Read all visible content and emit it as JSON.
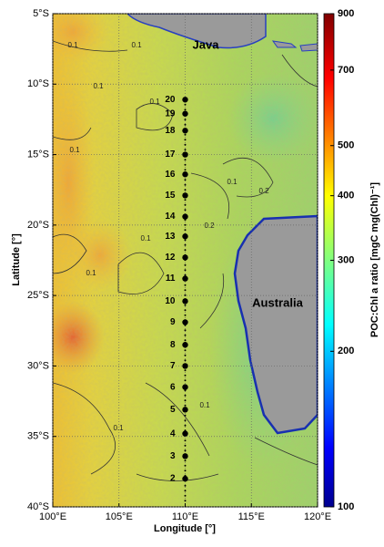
{
  "chart_data": {
    "type": "map",
    "xlabel": "Longitude [°]",
    "ylabel": "Latitude [°]",
    "xlim": [
      100,
      120
    ],
    "ylim": [
      5,
      40
    ],
    "xticks": [
      {
        "value": 100,
        "label": "100°E"
      },
      {
        "value": 105,
        "label": "105°E"
      },
      {
        "value": 110,
        "label": "110°E"
      },
      {
        "value": 115,
        "label": "115°E"
      },
      {
        "value": 120,
        "label": "120°E"
      }
    ],
    "yticks": [
      {
        "value": 5,
        "label": "5°S"
      },
      {
        "value": 10,
        "label": "10°S"
      },
      {
        "value": 15,
        "label": "15°S"
      },
      {
        "value": 20,
        "label": "20°S"
      },
      {
        "value": 25,
        "label": "25°S"
      },
      {
        "value": 30,
        "label": "30°S"
      },
      {
        "value": 35,
        "label": "35°S"
      },
      {
        "value": 40,
        "label": "40°S"
      }
    ],
    "grid": true,
    "colorbar": {
      "label": "POC:Chl a ratio [mgC mg(Chl)⁻¹]",
      "lim": [
        100,
        900
      ],
      "log": true,
      "ticks": [
        100,
        200,
        300,
        400,
        500,
        700,
        900
      ]
    },
    "land_labels": [
      "Java",
      "Australia"
    ],
    "stations": {
      "lon": [
        110,
        110,
        110,
        110,
        110,
        110,
        110,
        110,
        110,
        110,
        110,
        110,
        110,
        110,
        110,
        110,
        110,
        110,
        110
      ],
      "lat": [
        38.0,
        36.4,
        34.8,
        33.1,
        31.5,
        30.0,
        28.5,
        26.9,
        25.4,
        23.8,
        22.3,
        20.8,
        19.4,
        17.9,
        16.4,
        15.0,
        13.3,
        12.1,
        11.1
      ],
      "labels": [
        "2",
        "3",
        "4",
        "5",
        "6",
        "7",
        "8",
        "9",
        "10",
        "11",
        "12",
        "13",
        "14",
        "15",
        "16",
        "17",
        "18",
        "19",
        "20"
      ]
    },
    "contour_labels": [
      "0.1",
      "0.1",
      "0.1",
      "0.1",
      "0.1",
      "0.1",
      "0.1",
      "0.2",
      "0.2",
      "0.1",
      "0.1",
      "0.1"
    ]
  }
}
